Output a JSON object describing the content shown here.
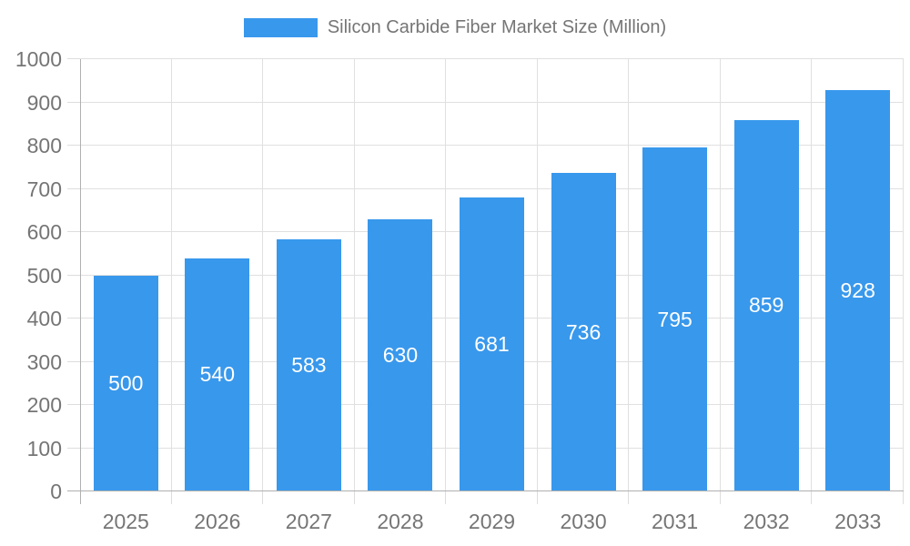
{
  "legend": {
    "label": "Silicon Carbide Fiber Market Size (Million)"
  },
  "chart_data": {
    "type": "bar",
    "title": "Silicon Carbide Fiber Market Size (Million)",
    "series_name": "Silicon Carbide Fiber Market Size (Million)",
    "categories": [
      "2025",
      "2026",
      "2027",
      "2028",
      "2029",
      "2030",
      "2031",
      "2032",
      "2033"
    ],
    "values": [
      500,
      540,
      583,
      630,
      681,
      736,
      795,
      859,
      928
    ],
    "xlabel": "",
    "ylabel": "",
    "ylim": [
      0,
      1000
    ],
    "y_ticks": [
      0,
      100,
      200,
      300,
      400,
      500,
      600,
      700,
      800,
      900,
      1000
    ],
    "grid": true,
    "legend_position": "top",
    "bar_value_labels": "inside-center"
  },
  "colors": {
    "bar": "#3898EC",
    "bar_label": "#ffffff",
    "axis_text": "#757575",
    "grid_line": "#e0e0e0",
    "tick_line": "#dddddd",
    "axis_line": "#b0b0b0",
    "background": "#ffffff"
  }
}
